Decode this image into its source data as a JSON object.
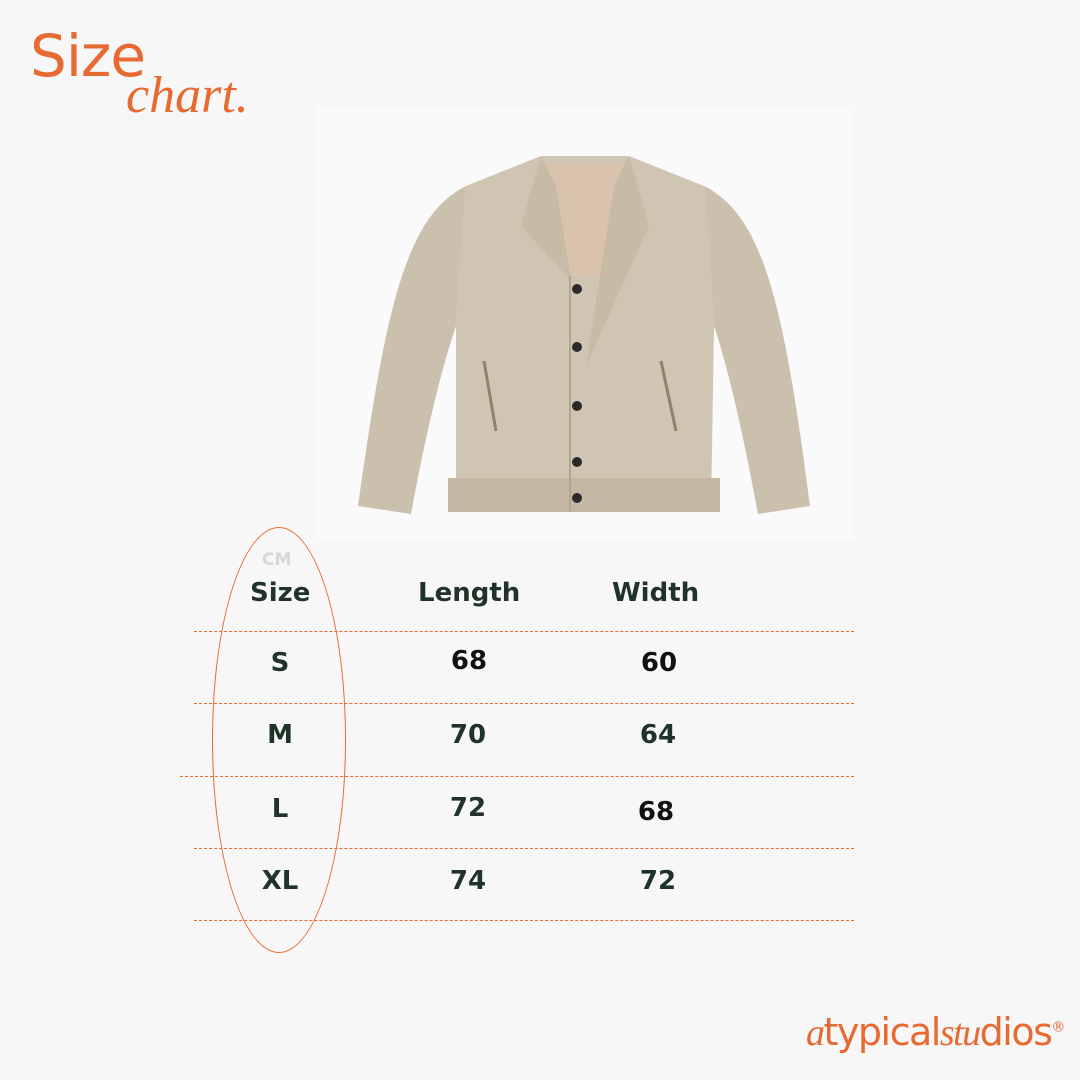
{
  "title": {
    "line1": "Size",
    "line2": "chart."
  },
  "image": {
    "subject": "jacket-photo",
    "colors": {
      "fabric": "#cfc3b1",
      "lining": "#d9c3ad",
      "buttons": "#2a2a2a"
    }
  },
  "table": {
    "unit": "CM",
    "headers": [
      "Size",
      "Length",
      "Width"
    ],
    "rows": [
      {
        "size": "S",
        "length": "68",
        "width": "60"
      },
      {
        "size": "M",
        "length": "70",
        "width": "64"
      },
      {
        "size": "L",
        "length": "72",
        "width": "68"
      },
      {
        "size": "XL",
        "length": "74",
        "width": "72"
      }
    ]
  },
  "brand": {
    "logo_text": "atypicalstudios",
    "logo_a": "a",
    "logo_typical": "typical",
    "logo_stu": "stu",
    "logo_dios": "dios",
    "registered": "®"
  },
  "colors": {
    "accent": "#e86a33",
    "text": "#1f3329",
    "background": "#f7f7f7"
  }
}
